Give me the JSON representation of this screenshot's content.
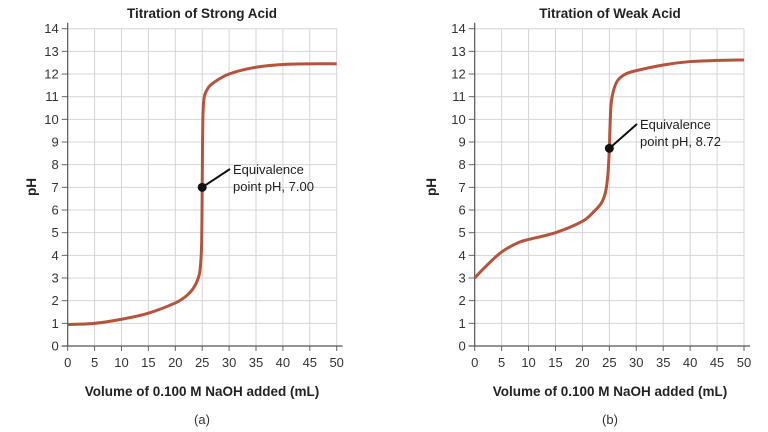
{
  "chart_data": [
    {
      "type": "line",
      "title": "Titration of Strong Acid",
      "xlabel": "Volume of 0.100 M NaOH added (mL)",
      "ylabel": "pH",
      "panel_label": "(a)",
      "xlim": [
        0,
        50
      ],
      "ylim": [
        0,
        14
      ],
      "xticks": [
        "0",
        "5",
        "10",
        "15",
        "20",
        "25",
        "30",
        "35",
        "40",
        "45",
        "50"
      ],
      "yticks": [
        "0",
        "1",
        "2",
        "3",
        "4",
        "5",
        "6",
        "7",
        "8",
        "9",
        "10",
        "11",
        "12",
        "13",
        "14"
      ],
      "grid": true,
      "line_color": "#b5533c",
      "x": [
        0,
        5,
        10,
        15,
        20,
        22,
        23.5,
        24.5,
        24.85,
        24.95,
        25,
        25.05,
        25.15,
        25.4,
        26,
        27,
        30,
        35,
        40,
        45,
        50
      ],
      "y": [
        0.95,
        1.0,
        1.18,
        1.45,
        1.9,
        2.2,
        2.6,
        3.2,
        4.2,
        5.5,
        7.0,
        8.5,
        10.3,
        11.0,
        11.35,
        11.6,
        12.0,
        12.3,
        12.42,
        12.45,
        12.45
      ],
      "annotation": {
        "line1": "Equivalence",
        "line2": "point pH, 7.00",
        "x": 25,
        "y": 7.0
      }
    },
    {
      "type": "line",
      "title": "Titration of Weak Acid",
      "xlabel": "Volume of 0.100 M NaOH added (mL)",
      "ylabel": "pH",
      "panel_label": "(b)",
      "xlim": [
        0,
        50
      ],
      "ylim": [
        0,
        14
      ],
      "xticks": [
        "0",
        "5",
        "10",
        "15",
        "20",
        "25",
        "30",
        "35",
        "40",
        "45",
        "50"
      ],
      "yticks": [
        "0",
        "1",
        "2",
        "3",
        "4",
        "5",
        "6",
        "7",
        "8",
        "9",
        "10",
        "11",
        "12",
        "13",
        "14"
      ],
      "grid": true,
      "line_color": "#b5533c",
      "x": [
        0,
        2,
        5,
        8,
        10,
        15,
        20,
        22,
        23.5,
        24.3,
        24.7,
        24.9,
        25,
        25.1,
        25.3,
        25.7,
        26.5,
        28,
        30,
        35,
        40,
        45,
        50
      ],
      "y": [
        3.0,
        3.5,
        4.15,
        4.55,
        4.7,
        5.0,
        5.5,
        5.9,
        6.3,
        6.8,
        7.5,
        8.2,
        8.72,
        9.5,
        10.6,
        11.2,
        11.7,
        12.0,
        12.15,
        12.4,
        12.55,
        12.6,
        12.62
      ],
      "annotation": {
        "line1": "Equivalence",
        "line2": "point pH, 8.72",
        "x": 25,
        "y": 8.72
      }
    }
  ]
}
